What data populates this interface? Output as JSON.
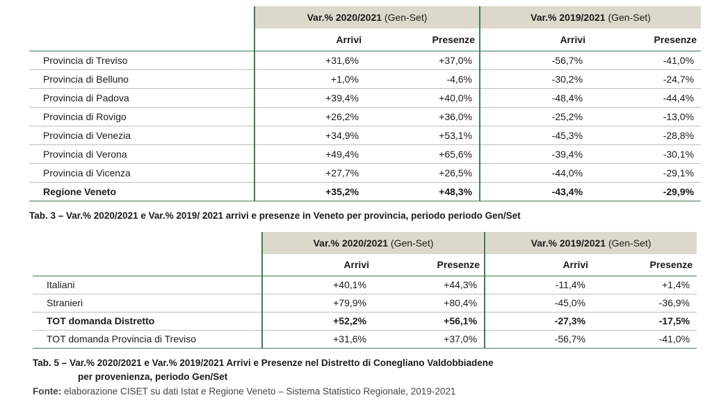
{
  "table3": {
    "group_headers": [
      {
        "prefix": "Var.% 2020/2021",
        "suffix": " (Gen-Set)"
      },
      {
        "prefix": "Var.% 2019/2021",
        "suffix": " (Gen-Set)"
      }
    ],
    "sub_headers": [
      "Arrivi",
      "Presenze",
      "Arrivi",
      "Presenze"
    ],
    "rows": [
      {
        "label": "Provincia di Treviso",
        "values": [
          "+31,6%",
          "+37,0%",
          "-56,7%",
          "-41,0%"
        ]
      },
      {
        "label": "Provincia di Belluno",
        "values": [
          "+1,0%",
          "-4,6%",
          "-30,2%",
          "-24,7%"
        ]
      },
      {
        "label": "Provincia di Padova",
        "values": [
          "+39,4%",
          "+40,0%",
          "-48,4%",
          "-44,4%"
        ]
      },
      {
        "label": "Provincia di Rovigo",
        "values": [
          "+26,2%",
          "+36,0%",
          "-25,2%",
          "-13,0%"
        ]
      },
      {
        "label": "Provincia di Venezia",
        "values": [
          "+34,9%",
          "+53,1%",
          "-45,3%",
          "-28,8%"
        ]
      },
      {
        "label": "Provincia di Verona",
        "values": [
          "+49,4%",
          "+65,6%",
          "-39,4%",
          "-30,1%"
        ]
      },
      {
        "label": "Provincia di Vicenza",
        "values": [
          "+27,7%",
          "+26,5%",
          "-44,0%",
          "-29,1%"
        ]
      },
      {
        "label": "Regione Veneto",
        "values": [
          "+35,2%",
          "+48,3%",
          "-43,4%",
          "-29,9%"
        ]
      }
    ],
    "caption": "Tab. 3 – Var.% 2020/2021 e Var.% 2019/ 2021 arrivi e presenze in Veneto per provincia, periodo periodo Gen/Set"
  },
  "table5": {
    "group_headers": [
      {
        "prefix": "Var.% 2020/2021",
        "suffix": " (Gen-Set)"
      },
      {
        "prefix": "Var.% 2019/2021",
        "suffix": " (Gen-Set)"
      }
    ],
    "sub_headers": [
      "Arrivi",
      "Presenze",
      "Arrivi",
      "Presenze"
    ],
    "rows": [
      {
        "label": "Italiani",
        "values": [
          "+40,1%",
          "+44,3%",
          "-11,4%",
          "+1,4%"
        ]
      },
      {
        "label": "Stranieri",
        "values": [
          "+79,9%",
          "+80,4%",
          "-45,0%",
          "-36,9%"
        ]
      },
      {
        "label": "TOT domanda Distretto",
        "values": [
          "+52,2%",
          "+56,1%",
          "-27,3%",
          "-17,5%"
        ]
      },
      {
        "label": "TOT domanda Provincia di Treviso",
        "values": [
          "+31,6%",
          "+37,0%",
          "-56,7%",
          "-41,0%"
        ]
      }
    ],
    "caption_line1": "Tab. 5 – Var.% 2020/2021 e Var.% 2019/2021 Arrivi e Presenze nel Distretto di Conegliano Valdobbiadene",
    "caption_line2": "per provenienza, periodo Gen/Set"
  },
  "source": {
    "label": "Fonte:",
    "text": " elaborazione CISET su dati Istat e Regione Veneto – Sistema Statistico Regionale, 2019-2021"
  }
}
